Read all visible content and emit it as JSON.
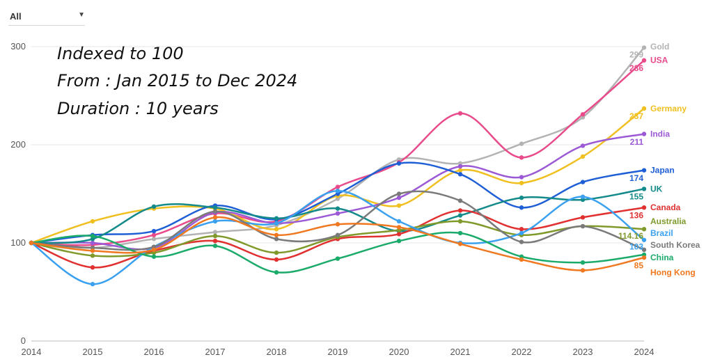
{
  "filter": {
    "label": "All",
    "caret_icon": "chevron-down-icon"
  },
  "annotation": {
    "line1": "Indexed to 100",
    "line2": "From : Jan 2015 to Dec 2024",
    "line3": "Duration : 10 years"
  },
  "chart_data": {
    "type": "line",
    "x": [
      2014,
      2015,
      2016,
      2017,
      2018,
      2019,
      2020,
      2021,
      2022,
      2023,
      2024
    ],
    "ylim": [
      0,
      300
    ],
    "yticks": [
      0,
      100,
      200,
      300
    ],
    "grid": true,
    "legend": "right end labels",
    "series": [
      {
        "name": "Gold",
        "color": "#b3b3b3",
        "end_label": "299",
        "values": [
          100,
          95,
          104,
          111,
          118,
          145,
          185,
          181,
          201,
          228,
          299
        ]
      },
      {
        "name": "USA",
        "color": "#e84a8a",
        "end_label": "286",
        "values": [
          100,
          98,
          108,
          130,
          122,
          157,
          182,
          232,
          187,
          231,
          286
        ]
      },
      {
        "name": "Germany",
        "color": "#f0c020",
        "end_label": "237",
        "values": [
          100,
          122,
          135,
          135,
          114,
          148,
          138,
          174,
          161,
          188,
          237
        ]
      },
      {
        "name": "India",
        "color": "#9b59d6",
        "end_label": "211",
        "values": [
          100,
          100,
          95,
          131,
          120,
          130,
          146,
          178,
          167,
          199,
          211
        ]
      },
      {
        "name": "Japan",
        "color": "#1f5fd6",
        "end_label": "174",
        "values": [
          100,
          108,
          112,
          138,
          124,
          150,
          181,
          170,
          136,
          162,
          174
        ]
      },
      {
        "name": "UK",
        "color": "#148a8a",
        "end_label": "155",
        "values": [
          100,
          104,
          137,
          136,
          125,
          135,
          112,
          128,
          146,
          144,
          155
        ]
      },
      {
        "name": "Canada",
        "color": "#e03030",
        "end_label": "136",
        "values": [
          100,
          75,
          92,
          102,
          83,
          104,
          109,
          133,
          114,
          126,
          136
        ]
      },
      {
        "name": "Australia",
        "color": "#7f9a2b",
        "end_label": "114.16",
        "values": [
          100,
          87,
          90,
          107,
          90,
          106,
          113,
          122,
          108,
          117,
          114
        ]
      },
      {
        "name": "Brazil",
        "color": "#3aa0f0",
        "end_label": "103",
        "values": [
          100,
          58,
          96,
          122,
          120,
          153,
          122,
          100,
          110,
          147,
          103
        ]
      },
      {
        "name": "South Korea",
        "color": "#7a7a7a",
        "end_label": "",
        "values": [
          100,
          95,
          96,
          132,
          104,
          108,
          150,
          143,
          101,
          117,
          93
        ]
      },
      {
        "name": "China",
        "color": "#1aaa6a",
        "end_label": "",
        "values": [
          100,
          107,
          86,
          97,
          70,
          84,
          102,
          110,
          86,
          80,
          88
        ]
      },
      {
        "name": "Hong Kong",
        "color": "#f07820",
        "end_label": "85",
        "values": [
          100,
          92,
          93,
          126,
          108,
          119,
          116,
          99,
          83,
          72,
          85
        ]
      }
    ]
  }
}
